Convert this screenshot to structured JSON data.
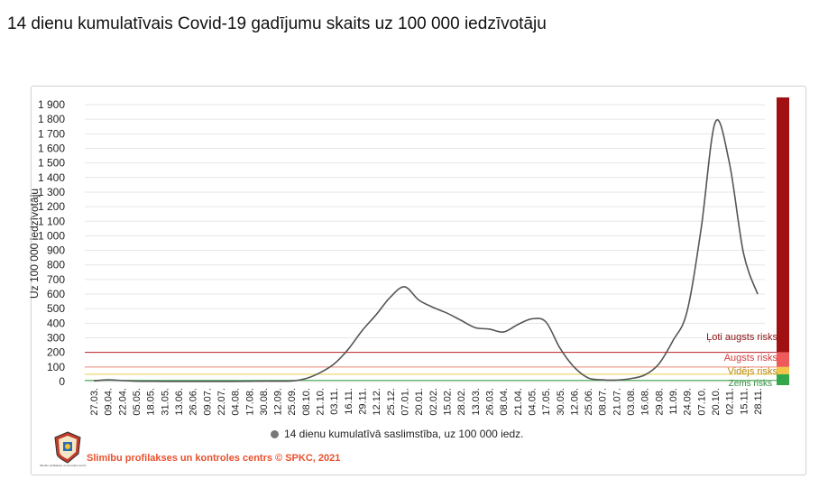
{
  "title": "14 dienu kumulatīvais Covid-19 gadījumu skaits uz 100 000 iedzīvotāju",
  "footer": "Slimību profilakses un kontroles centrs © SPKC, 2021",
  "logo_text": "Slimību profilakses un kontroles centrs",
  "chart_data": {
    "type": "line",
    "title": "",
    "xlabel": "",
    "ylabel": "Uz 100 000 iedzīvotāju",
    "ylim": [
      0,
      1900
    ],
    "yticks": [
      "0",
      "100",
      "200",
      "300",
      "400",
      "500",
      "600",
      "700",
      "800",
      "900",
      "1 000",
      "1 100",
      "1 200",
      "1 300",
      "1 400",
      "1 500",
      "1 600",
      "1 700",
      "1 800",
      "1 900"
    ],
    "x_tick_labels": [
      "27.03.",
      "09.04.",
      "22.04.",
      "05.05.",
      "18.05.",
      "31.05.",
      "13.06.",
      "26.06.",
      "09.07.",
      "22.07.",
      "04.08.",
      "17.08.",
      "30.08.",
      "12.09.",
      "25.09.",
      "08.10.",
      "21.10.",
      "03.11.",
      "16.11.",
      "29.11.",
      "12.12.",
      "25.12.",
      "07.01.",
      "20.01.",
      "02.02.",
      "15.02.",
      "28.02.",
      "13.03.",
      "26.03.",
      "08.04.",
      "21.04.",
      "04.05.",
      "17.05.",
      "30.05.",
      "12.06.",
      "25.06.",
      "08.07.",
      "21.07.",
      "03.08.",
      "16.08.",
      "29.08.",
      "11.09.",
      "24.09.",
      "07.10.",
      "20.10.",
      "02.11.",
      "15.11.",
      "28.11."
    ],
    "grid": true,
    "legend_position": "bottom",
    "series": [
      {
        "name": "14 dienu kumulatīvā saslimstība, uz 100 000 iedz.",
        "color": "#555555",
        "values": [
          5,
          12,
          7,
          3,
          2,
          1,
          1,
          1,
          1,
          1,
          1,
          2,
          3,
          3,
          4,
          20,
          60,
          120,
          220,
          350,
          460,
          580,
          650,
          560,
          510,
          470,
          420,
          370,
          360,
          340,
          390,
          430,
          410,
          230,
          100,
          25,
          12,
          10,
          20,
          45,
          120,
          280,
          480,
          1050,
          1780,
          1500,
          880,
          600
        ]
      }
    ],
    "risk_levels": [
      {
        "label": "Ļoti augsts risks",
        "from": 200,
        "to": 1900,
        "color": "#a11111"
      },
      {
        "label": "Augsts risks",
        "from": 100,
        "to": 200,
        "color": "#ef5a5a"
      },
      {
        "label": "Vidējs risks",
        "from": 50,
        "to": 100,
        "color": "#f3c64a"
      },
      {
        "label": "Zems risks",
        "from": 0,
        "to": 50,
        "color": "#33a84a"
      }
    ]
  }
}
